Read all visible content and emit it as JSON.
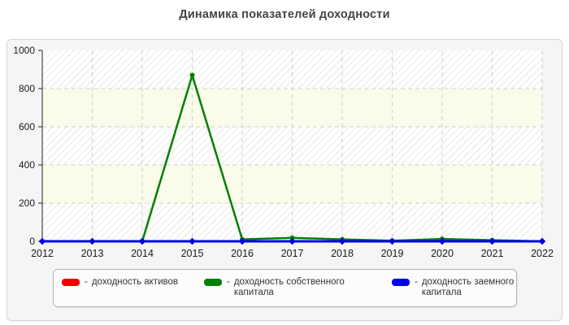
{
  "header": {
    "title": "Динамика показателей доходности"
  },
  "chart_data": {
    "type": "line",
    "title": "Динамика показателей доходности",
    "x": [
      "2012",
      "2013",
      "2014",
      "2015",
      "2016",
      "2017",
      "2018",
      "2019",
      "2020",
      "2021",
      "2022"
    ],
    "xlabel": "",
    "ylabel": "",
    "ylim": [
      0,
      1000
    ],
    "yticks": [
      0,
      200,
      400,
      600,
      800,
      1000
    ],
    "grid": true,
    "legend_position": "bottom",
    "plot_bands": "alternating white-hatched and cream horizontal bands",
    "series": [
      {
        "name": "доходность активов",
        "color": "#ee0000",
        "width": 2.5,
        "marker": "diamond",
        "values": [
          0,
          0,
          0,
          0,
          0,
          0,
          0,
          0,
          0,
          0,
          0
        ]
      },
      {
        "name": "доходность собственного капитала",
        "color": "#008000",
        "width": 2.5,
        "marker": "circle",
        "values": [
          0,
          0,
          0,
          870,
          10,
          18,
          10,
          3,
          12,
          6,
          0
        ]
      },
      {
        "name": "доходность заемного капитала",
        "color": "#0000ee",
        "width": 3,
        "marker": "diamond",
        "values": [
          0,
          0,
          0,
          0,
          0,
          0,
          0,
          0,
          0,
          0,
          0
        ]
      }
    ]
  },
  "legend": {
    "dash": "-",
    "items": [
      {
        "label": "доходность активов",
        "color": "#ee0000"
      },
      {
        "label": "доходность собственного капитала",
        "color": "#008000"
      },
      {
        "label": "доходность заемного капитала",
        "color": "#0000ee"
      }
    ]
  },
  "colors": {
    "panel_bg": "#f5f5f5",
    "band_cream": "#fbfbea",
    "hatch_line": "#e3e3e3",
    "gridline": "#cfcfcf",
    "axis": "#444444",
    "tick_text": "#1a1a1a"
  }
}
